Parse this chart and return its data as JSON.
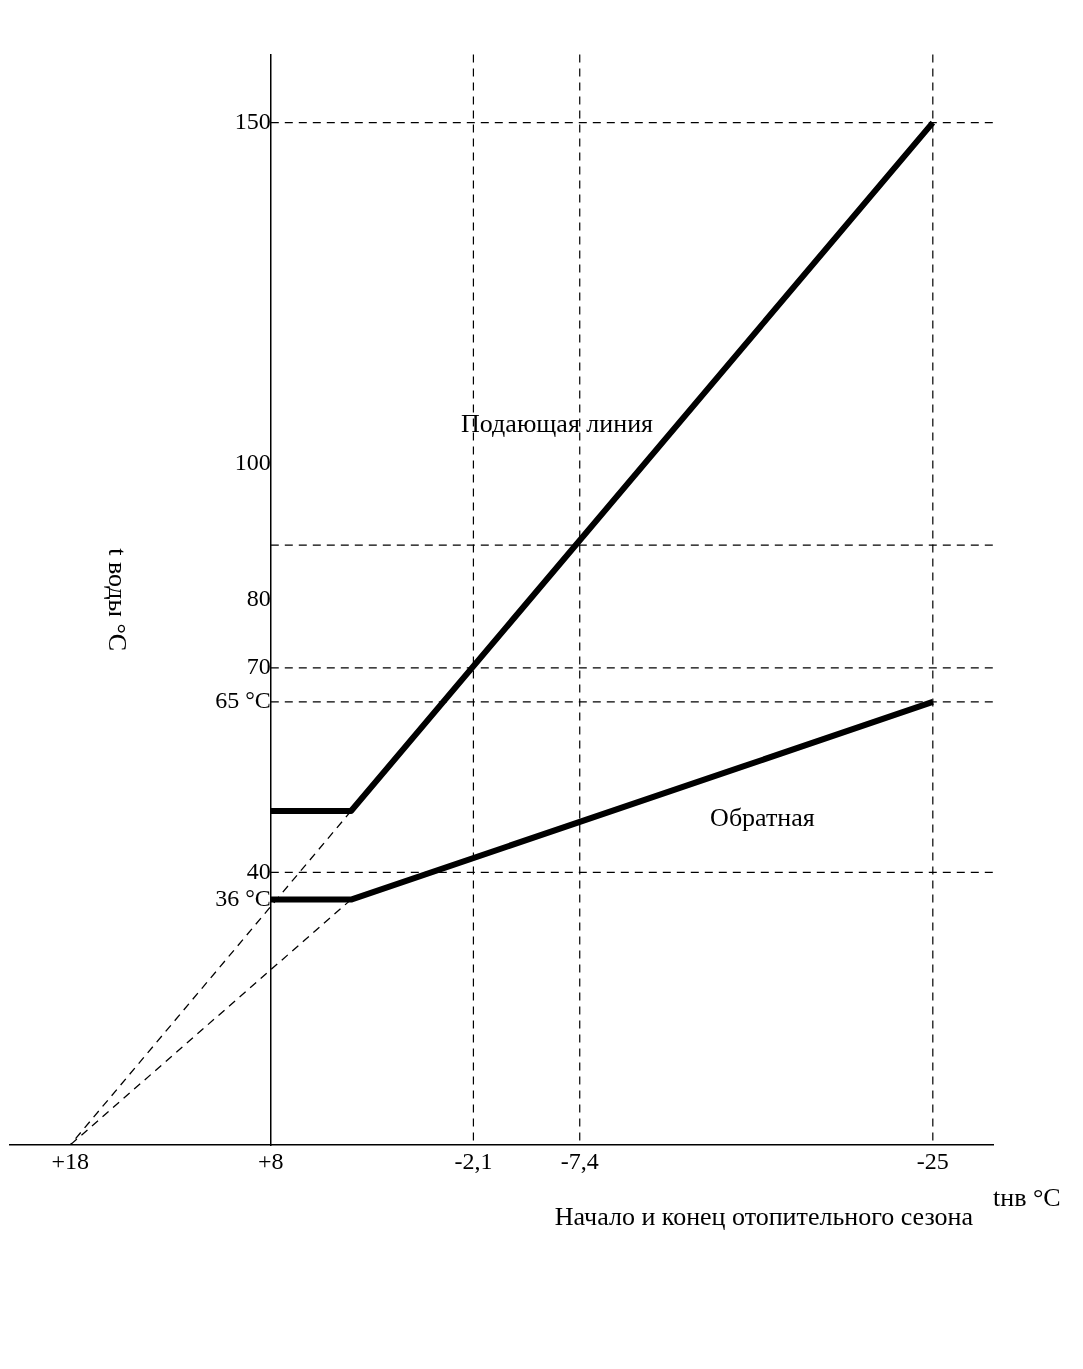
{
  "chart_data": {
    "type": "line",
    "ylabel": "t воды °C",
    "xlabel": "tнв °C",
    "xlim": [
      21,
      -28
    ],
    "ylim": [
      0,
      160
    ],
    "xticks": [
      {
        "value": 18,
        "label": "+18"
      },
      {
        "value": 8,
        "label": "+8"
      },
      {
        "value": -2.1,
        "label": "-2,1"
      },
      {
        "value": -7.4,
        "label": "-7,4"
      },
      {
        "value": -25,
        "label": "-25"
      }
    ],
    "yticks": [
      {
        "value": 36,
        "label": "36 °C"
      },
      40,
      {
        "value": 65,
        "label": "65 °C"
      },
      70,
      80,
      100,
      150
    ],
    "grid": false,
    "legend": false,
    "marker": "none",
    "series": [
      {
        "name": "Подающая линия",
        "color": "#000000",
        "x": [
          8,
          4,
          -25
        ],
        "values": [
          49,
          49,
          150
        ],
        "line_style": "solid"
      },
      {
        "name": "Обратная",
        "color": "#000000",
        "x": [
          8,
          4,
          -25
        ],
        "values": [
          36,
          36,
          65
        ],
        "line_style": "solid"
      },
      {
        "color": "#000000",
        "x": [
          4,
          18
        ],
        "values": [
          49,
          0
        ],
        "line_style": "dashed"
      },
      {
        "color": "#000000",
        "x": [
          4,
          18
        ],
        "values": [
          36,
          0
        ],
        "line_style": "dashed"
      }
    ],
    "ref_lines": [
      {
        "axis": "y",
        "value": 150
      },
      {
        "axis": "y",
        "value": 88
      },
      {
        "axis": "y",
        "value": 70
      },
      {
        "axis": "y",
        "value": 65
      },
      {
        "axis": "y",
        "value": 40
      },
      {
        "axis": "x",
        "value": -2.1
      },
      {
        "axis": "x",
        "value": -7.4
      },
      {
        "axis": "x",
        "value": -25
      }
    ],
    "annotations": [
      "Начало и конец отопительного сезона"
    ]
  }
}
